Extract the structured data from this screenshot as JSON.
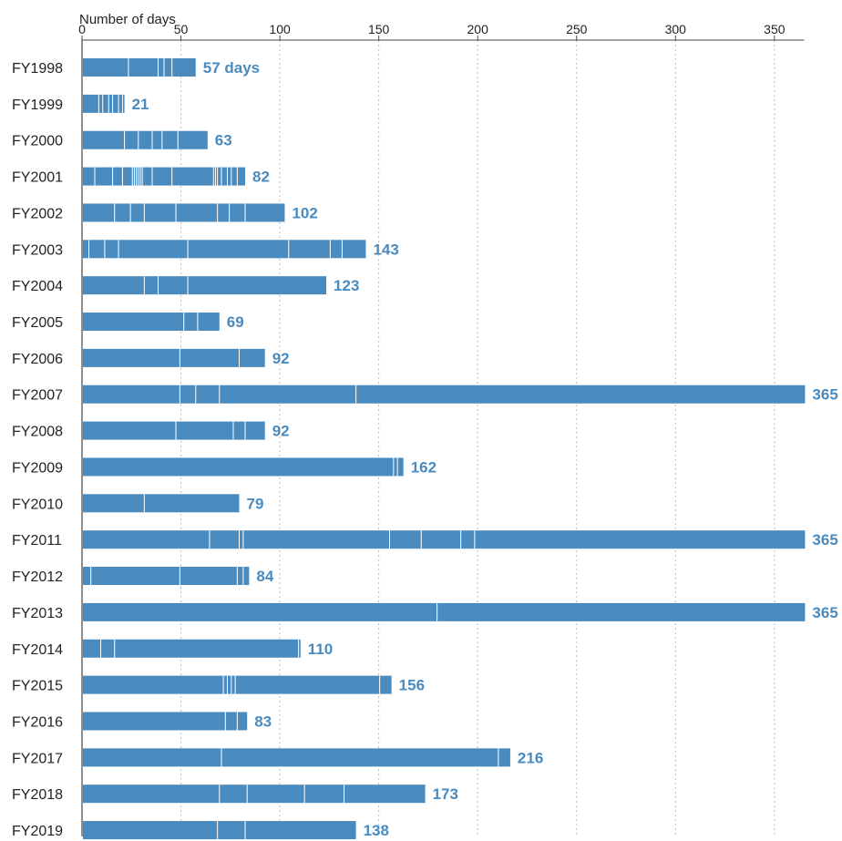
{
  "chart_data": {
    "type": "bar",
    "orientation": "horizontal",
    "title": "",
    "xlabel": "Number of days",
    "ylabel": "",
    "xlim": [
      0,
      365
    ],
    "xticks": [
      0,
      50,
      100,
      150,
      200,
      250,
      300,
      350
    ],
    "grid": "vertical-dashed",
    "colors": {
      "bar": "#4a8bbf",
      "separator": "#ffffff",
      "label": "#4a8bbf",
      "axis": "#444444",
      "grid": "#bbbbbb"
    },
    "categories": [
      "FY1998",
      "FY1999",
      "FY2000",
      "FY2001",
      "FY2002",
      "FY2003",
      "FY2004",
      "FY2005",
      "FY2006",
      "FY2007",
      "FY2008",
      "FY2009",
      "FY2010",
      "FY2011",
      "FY2012",
      "FY2013",
      "FY2014",
      "FY2015",
      "FY2016",
      "FY2017",
      "FY2018",
      "FY2019"
    ],
    "values": [
      57,
      21,
      63,
      82,
      102,
      143,
      123,
      69,
      92,
      365,
      92,
      162,
      79,
      365,
      84,
      365,
      110,
      156,
      83,
      216,
      173,
      138
    ],
    "value_labels": [
      "57 days",
      "21",
      "63",
      "82",
      "102",
      "143",
      "123",
      "69",
      "92",
      "365",
      "92",
      "162",
      "79",
      "365",
      "84",
      "365",
      "110",
      "156",
      "83",
      "216",
      "173",
      "138"
    ],
    "period_boundaries": [
      [
        23,
        38,
        41,
        45
      ],
      [
        8,
        10,
        13,
        15,
        18,
        20
      ],
      [
        21,
        28,
        35,
        40,
        48
      ],
      [
        6,
        15,
        20,
        25,
        26,
        27,
        28,
        29,
        30,
        35,
        45,
        66,
        67,
        68,
        70,
        73,
        75,
        78
      ],
      [
        16,
        24,
        31,
        47,
        68,
        74,
        82
      ],
      [
        3,
        11,
        18,
        53,
        104,
        125,
        131
      ],
      [
        31,
        38,
        53
      ],
      [
        51,
        58
      ],
      [
        49,
        79
      ],
      [
        49,
        57,
        69,
        138
      ],
      [
        47,
        76,
        82
      ],
      [
        157,
        159
      ],
      [
        31
      ],
      [
        64,
        79,
        81,
        155,
        171,
        191,
        198
      ],
      [
        4,
        49,
        78,
        81
      ],
      [
        179
      ],
      [
        9,
        16,
        109
      ],
      [
        71,
        73,
        75,
        77,
        150
      ],
      [
        72,
        78
      ],
      [
        70,
        210
      ],
      [
        69,
        83,
        112,
        132
      ],
      [
        68,
        82
      ]
    ]
  }
}
